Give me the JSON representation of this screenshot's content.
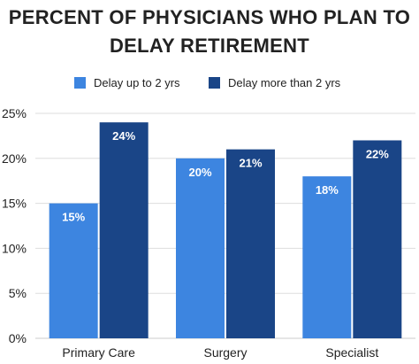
{
  "chart_data": {
    "type": "bar",
    "title_lines": [
      "PERCENT OF PHYSICIANS WHO PLAN TO",
      "DELAY RETIREMENT"
    ],
    "categories": [
      "Primary Care",
      "Surgery",
      "Specialist"
    ],
    "series": [
      {
        "name": "Delay up to 2 yrs",
        "values": [
          15,
          20,
          18
        ],
        "color": "#3d85e0"
      },
      {
        "name": "Delay more than 2 yrs",
        "values": [
          24,
          21,
          22
        ],
        "color": "#1a4587"
      }
    ],
    "data_labels": [
      [
        "15%",
        "20%",
        "18%"
      ],
      [
        "24%",
        "21%",
        "22%"
      ]
    ],
    "ylim": [
      0,
      25
    ],
    "yticks": [
      0,
      5,
      10,
      15,
      20,
      25
    ],
    "ytick_labels": [
      "0%",
      "5%",
      "10%",
      "15%",
      "20%",
      "25%"
    ],
    "xlabel": "",
    "ylabel": "",
    "grid": true,
    "grid_color": "#dddddd",
    "legend_position": "top-center"
  }
}
